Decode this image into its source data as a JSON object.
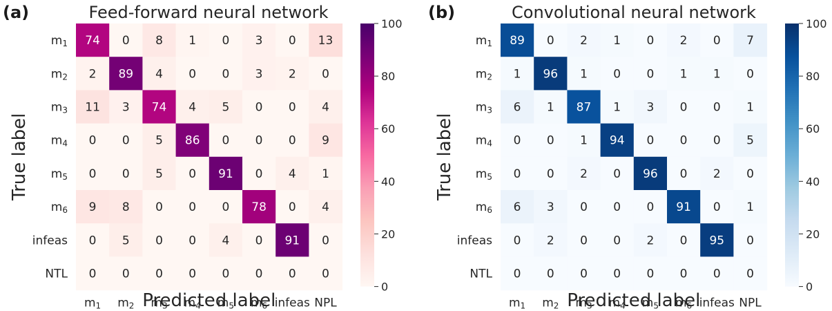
{
  "chart_data": [
    {
      "type": "heatmap",
      "panel_label": "(a)",
      "title": "Feed-forward neural network",
      "xlabel": "Predicted label",
      "ylabel": "True label",
      "x_categories": [
        {
          "base": "m",
          "sub": "1"
        },
        {
          "base": "m",
          "sub": "2"
        },
        {
          "base": "m",
          "sub": "3"
        },
        {
          "base": "m",
          "sub": "4"
        },
        {
          "base": "m",
          "sub": "5"
        },
        {
          "base": "m",
          "sub": "6"
        },
        {
          "base": "infeas",
          "sub": ""
        },
        {
          "base": "NPL",
          "sub": ""
        }
      ],
      "y_categories": [
        {
          "base": "m",
          "sub": "1"
        },
        {
          "base": "m",
          "sub": "2"
        },
        {
          "base": "m",
          "sub": "3"
        },
        {
          "base": "m",
          "sub": "4"
        },
        {
          "base": "m",
          "sub": "5"
        },
        {
          "base": "m",
          "sub": "6"
        },
        {
          "base": "infeas",
          "sub": ""
        },
        {
          "base": "NTL",
          "sub": ""
        }
      ],
      "values": [
        [
          74,
          0,
          8,
          1,
          0,
          3,
          0,
          13
        ],
        [
          2,
          89,
          4,
          0,
          0,
          3,
          2,
          0
        ],
        [
          11,
          3,
          74,
          4,
          5,
          0,
          0,
          4
        ],
        [
          0,
          0,
          5,
          86,
          0,
          0,
          0,
          9
        ],
        [
          0,
          0,
          5,
          0,
          91,
          0,
          4,
          1
        ],
        [
          9,
          8,
          0,
          0,
          0,
          78,
          0,
          4
        ],
        [
          0,
          5,
          0,
          0,
          4,
          0,
          91,
          0
        ],
        [
          0,
          0,
          0,
          0,
          0,
          0,
          0,
          0
        ]
      ],
      "colorbar": {
        "range": [
          0,
          100
        ],
        "ticks": [
          0,
          20,
          40,
          60,
          80,
          100
        ]
      },
      "colormap": "RdPu",
      "colormap_stops": [
        "#fff7f3",
        "#fde0dd",
        "#fcc5c0",
        "#fa9fb5",
        "#f768a1",
        "#dd3497",
        "#ae017e",
        "#7a0177",
        "#49006a"
      ]
    },
    {
      "type": "heatmap",
      "panel_label": "(b)",
      "title": "Convolutional neural network",
      "xlabel": "Predicted label",
      "ylabel": "True label",
      "x_categories": [
        {
          "base": "m",
          "sub": "1"
        },
        {
          "base": "m",
          "sub": "2"
        },
        {
          "base": "m",
          "sub": "3"
        },
        {
          "base": "m",
          "sub": "4"
        },
        {
          "base": "m",
          "sub": "5"
        },
        {
          "base": "m",
          "sub": "6"
        },
        {
          "base": "infeas",
          "sub": ""
        },
        {
          "base": "NPL",
          "sub": ""
        }
      ],
      "y_categories": [
        {
          "base": "m",
          "sub": "1"
        },
        {
          "base": "m",
          "sub": "2"
        },
        {
          "base": "m",
          "sub": "3"
        },
        {
          "base": "m",
          "sub": "4"
        },
        {
          "base": "m",
          "sub": "5"
        },
        {
          "base": "m",
          "sub": "6"
        },
        {
          "base": "infeas",
          "sub": ""
        },
        {
          "base": "NTL",
          "sub": ""
        }
      ],
      "values": [
        [
          89,
          0,
          2,
          1,
          0,
          2,
          0,
          7
        ],
        [
          1,
          96,
          1,
          0,
          0,
          1,
          1,
          0
        ],
        [
          6,
          1,
          87,
          1,
          3,
          0,
          0,
          1
        ],
        [
          0,
          0,
          1,
          94,
          0,
          0,
          0,
          5
        ],
        [
          0,
          0,
          2,
          0,
          96,
          0,
          2,
          0
        ],
        [
          6,
          3,
          0,
          0,
          0,
          91,
          0,
          1
        ],
        [
          0,
          2,
          0,
          0,
          2,
          0,
          95,
          0
        ],
        [
          0,
          0,
          0,
          0,
          0,
          0,
          0,
          0
        ]
      ],
      "colorbar": {
        "range": [
          0,
          100
        ],
        "ticks": [
          0,
          20,
          40,
          60,
          80,
          100
        ]
      },
      "colormap": "Blues",
      "colormap_stops": [
        "#f7fbff",
        "#deebf7",
        "#c6dbef",
        "#9ecae1",
        "#6baed6",
        "#4292c6",
        "#2171b5",
        "#08519c",
        "#08306b"
      ]
    }
  ]
}
